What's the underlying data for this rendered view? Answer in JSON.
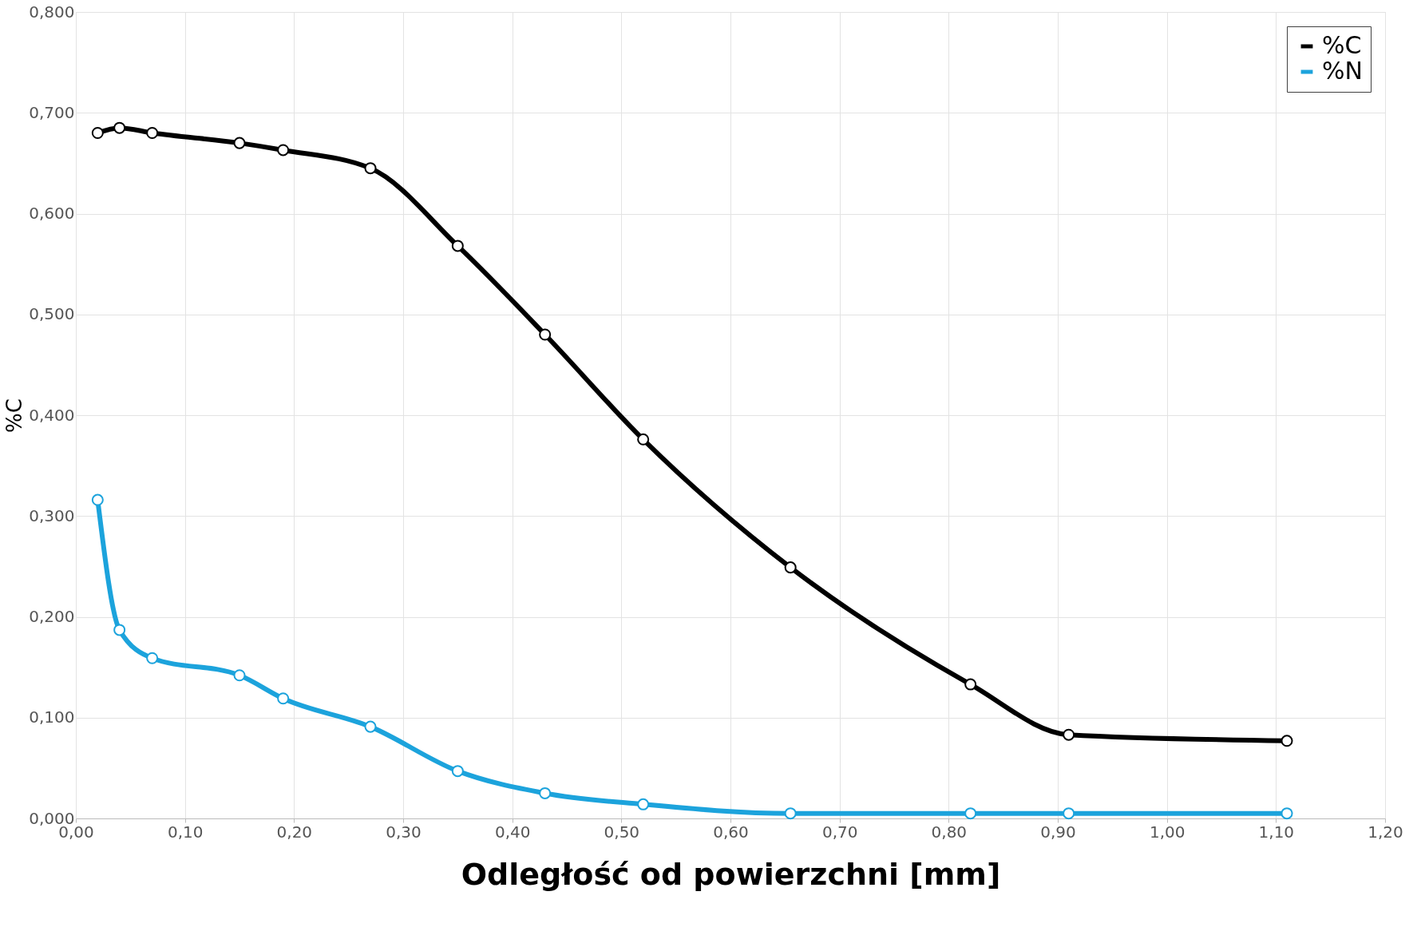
{
  "chart_data": {
    "type": "line",
    "xlabel": "Odległość od powierzchni [mm]",
    "ylabel": "%C",
    "series": [
      {
        "name": "%C",
        "color": "#000000",
        "x": [
          0.02,
          0.04,
          0.07,
          0.15,
          0.19,
          0.27,
          0.35,
          0.43,
          0.52,
          0.655,
          0.82,
          0.91,
          1.11
        ],
        "values": [
          0.68,
          0.685,
          0.68,
          0.67,
          0.663,
          0.645,
          0.568,
          0.48,
          0.376,
          0.249,
          0.133,
          0.083,
          0.077
        ]
      },
      {
        "name": "%N",
        "color": "#1ca3dc",
        "x": [
          0.02,
          0.04,
          0.07,
          0.15,
          0.19,
          0.27,
          0.35,
          0.43,
          0.52,
          0.655,
          0.82,
          0.91,
          1.11
        ],
        "values": [
          0.316,
          0.187,
          0.159,
          0.142,
          0.119,
          0.091,
          0.047,
          0.025,
          0.014,
          0.005,
          0.005,
          0.005,
          0.005
        ]
      }
    ],
    "xlim": [
      0,
      1.2
    ],
    "xticks": [
      {
        "value": 0,
        "label": "0,00"
      },
      {
        "value": 0.1,
        "label": "0,10"
      },
      {
        "value": 0.2,
        "label": "0,20"
      },
      {
        "value": 0.3,
        "label": "0,30"
      },
      {
        "value": 0.4,
        "label": "0,40"
      },
      {
        "value": 0.5,
        "label": "0,50"
      },
      {
        "value": 0.6,
        "label": "0,60"
      },
      {
        "value": 0.7,
        "label": "0,70"
      },
      {
        "value": 0.8,
        "label": "0,80"
      },
      {
        "value": 0.9,
        "label": "0,90"
      },
      {
        "value": 1.0,
        "label": "1,00"
      },
      {
        "value": 1.1,
        "label": "1,10"
      },
      {
        "value": 1.2,
        "label": "1,20"
      }
    ],
    "ylim": [
      0,
      0.8
    ],
    "yticks": [
      {
        "value": 0,
        "label": "0,000"
      },
      {
        "value": 0.1,
        "label": "0,100"
      },
      {
        "value": 0.2,
        "label": "0,200"
      },
      {
        "value": 0.3,
        "label": "0,300"
      },
      {
        "value": 0.4,
        "label": "0,400"
      },
      {
        "value": 0.5,
        "label": "0,500"
      },
      {
        "value": 0.6,
        "label": "0,600"
      },
      {
        "value": 0.7,
        "label": "0,700"
      },
      {
        "value": 0.8,
        "label": "0,800"
      }
    ],
    "grid": true,
    "legend": "top right",
    "marker": "circle",
    "line_style": "solid"
  }
}
